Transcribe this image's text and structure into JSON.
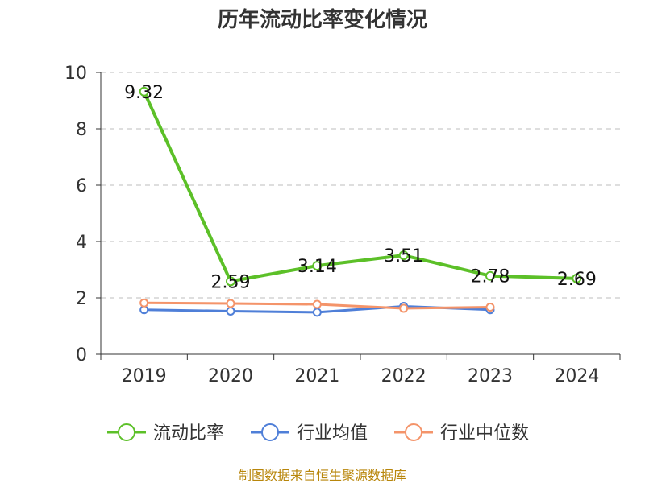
{
  "chart_data": {
    "type": "line",
    "title": "历年流动比率变化情况",
    "categories": [
      "2019",
      "2020",
      "2021",
      "2022",
      "2023",
      "2024"
    ],
    "ylim": [
      0,
      10
    ],
    "yticks": [
      0,
      2,
      4,
      6,
      8,
      10
    ],
    "grid": true,
    "legend_position": "bottom",
    "series": [
      {
        "name": "流动比率",
        "color": "#5cc028",
        "values": [
          9.32,
          2.59,
          3.14,
          3.51,
          2.78,
          2.69
        ],
        "labels": [
          "9.32",
          "2.59",
          "3.14",
          "3.51",
          "2.78",
          "2.69"
        ],
        "show_labels": true
      },
      {
        "name": "行业均值",
        "color": "#4f7fd8",
        "values": [
          1.58,
          1.53,
          1.49,
          1.7,
          1.58,
          null
        ],
        "show_labels": false
      },
      {
        "name": "行业中位数",
        "color": "#f4946a",
        "values": [
          1.82,
          1.8,
          1.77,
          1.63,
          1.67,
          null
        ],
        "show_labels": false
      }
    ],
    "source": "制图数据来自恒生聚源数据库"
  }
}
